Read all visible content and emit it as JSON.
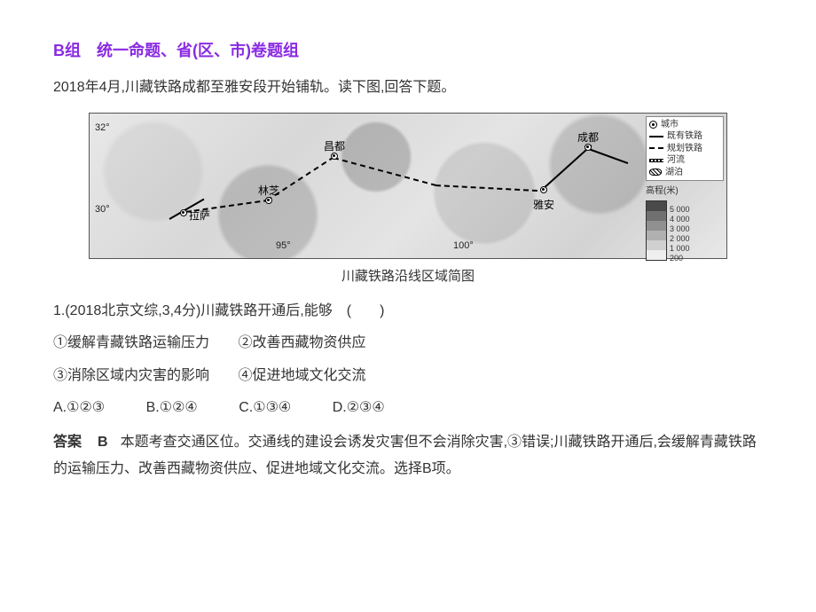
{
  "section": {
    "title": "B组　统一命题、省(区、市)卷题组"
  },
  "intro": "2018年4月,川藏铁路成都至雅安段开始铺轨。读下图,回答下题。",
  "map": {
    "latitudes": [
      "32°",
      "30°"
    ],
    "longitudes": [
      "95°",
      "100°"
    ],
    "cities": {
      "lhasa": "拉萨",
      "linzhi": "林芝",
      "changdu": "昌都",
      "yaan": "雅安",
      "chengdu": "成都"
    },
    "legend": {
      "city": "城市",
      "existing_rail": "既有铁路",
      "planned_rail": "规划铁路",
      "river": "河流",
      "lake": "湖泊"
    },
    "elevation": {
      "title": "高程(米)",
      "steps": [
        {
          "color": "#4a4a4a",
          "label": "5 000"
        },
        {
          "color": "#707070",
          "label": "4 000"
        },
        {
          "color": "#909090",
          "label": "3 000"
        },
        {
          "color": "#b0b0b0",
          "label": "2 000"
        },
        {
          "color": "#d0d0d0",
          "label": "1 000"
        },
        {
          "color": "#efefef",
          "label": "200"
        }
      ]
    },
    "caption": "川藏铁路沿线区域简图"
  },
  "question": {
    "number_source": "1.(2018北京文综,3,4分)",
    "stem": "川藏铁路开通后,能够　(　　)",
    "subs": {
      "s1": "①缓解青藏铁路运输压力",
      "s2": "②改善西藏物资供应",
      "s3": "③消除区域内灾害的影响",
      "s4": "④促进地域文化交流"
    },
    "choices": {
      "a": "A.①②③",
      "b": "B.①②④",
      "c": "C.①③④",
      "d": "D.②③④"
    }
  },
  "answer": {
    "label": "答案",
    "key": "B",
    "explanation": "本题考查交通区位。交通线的建设会诱发灾害但不会消除灾害,③错误;川藏铁路开通后,会缓解青藏铁路的运输压力、改善西藏物资供应、促进地域文化交流。选择B项。"
  }
}
